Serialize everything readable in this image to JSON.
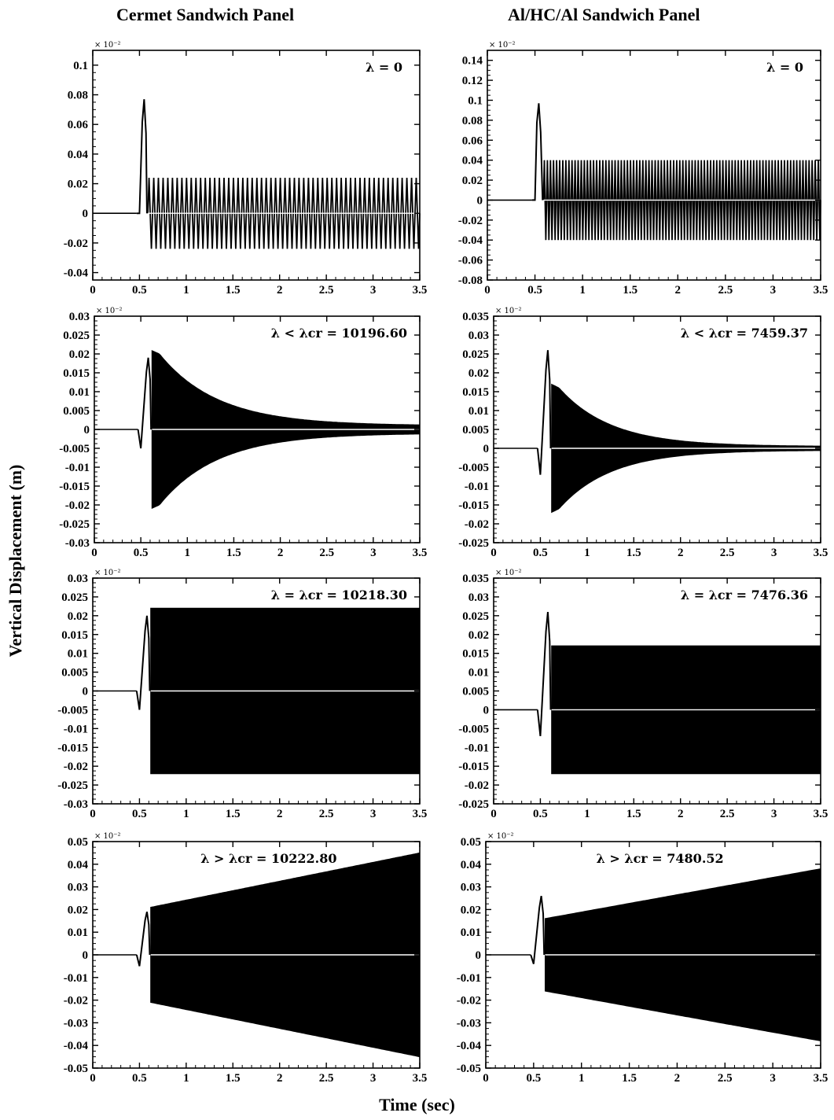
{
  "columns": [
    "Cermet Sandwich Panel",
    "Al/HC/Al Sandwich Panel"
  ],
  "y_axis_label": "Vertical Displacement (m)",
  "x_axis_label": "Time (sec)",
  "chart_data": [
    {
      "type": "line",
      "column": 0,
      "row": 0,
      "annotation": "λ = 0",
      "scale_label": "× 10⁻²",
      "xlim": [
        0,
        3.5
      ],
      "ylim": [
        -0.045,
        0.11
      ],
      "xticks": [
        "0",
        "0.5",
        "1",
        "1.5",
        "2",
        "2.5",
        "3",
        "3.5"
      ],
      "yticks": [
        -0.04,
        -0.02,
        0,
        0.02,
        0.04,
        0.06,
        0.08,
        0.1
      ],
      "yticklabels": [
        "-0.04",
        "-0.02",
        "0",
        "0.02",
        "0.04",
        "0.06",
        "0.08",
        "0.1"
      ],
      "envelope": {
        "t_start": 0.47,
        "pulse_peak": 0.077,
        "pulse_min": 0.0,
        "pulse_t": 0.55,
        "t_osc": 0.59,
        "amp_start_pos": 0.024,
        "amp_end_pos": 0.024,
        "amp_start_neg": -0.024,
        "amp_end_neg": -0.024,
        "band": false,
        "cycles": 58
      }
    },
    {
      "type": "line",
      "column": 1,
      "row": 0,
      "annotation": "λ = 0",
      "scale_label": "× 10⁻²",
      "xlim": [
        0,
        3.5
      ],
      "ylim": [
        -0.08,
        0.15
      ],
      "xticks": [
        "0",
        "0.5",
        "1",
        "1.5",
        "2",
        "2.5",
        "3",
        "3.5"
      ],
      "yticks": [
        -0.08,
        -0.06,
        -0.04,
        -0.02,
        0,
        0.02,
        0.04,
        0.06,
        0.08,
        0.1,
        0.12,
        0.14
      ],
      "yticklabels": [
        "-0.08",
        "-0.06",
        "-0.04",
        "-0.02",
        "0",
        "0.02",
        "0.04",
        "0.06",
        "0.08",
        "0.1",
        "0.12",
        "0.14"
      ],
      "envelope": {
        "t_start": 0.47,
        "pulse_peak": 0.097,
        "pulse_min": 0.0,
        "pulse_t": 0.54,
        "t_osc": 0.59,
        "amp_start_pos": 0.04,
        "amp_end_pos": 0.04,
        "amp_start_neg": -0.04,
        "amp_end_neg": -0.04,
        "band": false,
        "cycles": 90
      }
    },
    {
      "type": "line",
      "column": 0,
      "row": 1,
      "annotation": "λ < λcr = 10196.60",
      "scale_label": "× 10⁻²",
      "xlim": [
        0,
        3.5
      ],
      "ylim": [
        -0.03,
        0.03
      ],
      "xticks": [
        "0",
        "0.5",
        "1",
        "1.5",
        "2",
        "2.5",
        "3",
        "3.5"
      ],
      "yticks": [
        -0.03,
        -0.025,
        -0.02,
        -0.015,
        -0.01,
        -0.005,
        0,
        0.005,
        0.01,
        0.015,
        0.02,
        0.025,
        0.03
      ],
      "yticklabels": [
        "-0.03",
        "-0.025",
        "-0.02",
        "-0.015",
        "-0.01",
        "-0.005",
        "0",
        "0.005",
        "0.01",
        "0.015",
        "0.02",
        "0.025",
        "0.03"
      ],
      "envelope": {
        "t_start": 0.47,
        "pulse_peak": 0.019,
        "pulse_min": -0.005,
        "pulse_t": 0.58,
        "t_osc": 0.62,
        "amp_start_pos": 0.02,
        "amp_end_pos": 0.001,
        "amp_start_neg": -0.02,
        "amp_end_neg": -0.001,
        "band": true,
        "decay": 1.6
      }
    },
    {
      "type": "line",
      "column": 1,
      "row": 1,
      "annotation": "λ < λcr = 7459.37",
      "scale_label": "× 10⁻²",
      "xlim": [
        0,
        3.5
      ],
      "ylim": [
        -0.025,
        0.035
      ],
      "xticks": [
        "0",
        "0.5",
        "1",
        "1.5",
        "2",
        "2.5",
        "3",
        "3.5"
      ],
      "yticks": [
        -0.025,
        -0.02,
        -0.015,
        -0.01,
        -0.005,
        0,
        0.005,
        0.01,
        0.015,
        0.02,
        0.025,
        0.03,
        0.035
      ],
      "yticklabels": [
        "-0.025",
        "-0.02",
        "-0.015",
        "-0.01",
        "-0.005",
        "0",
        "0.005",
        "0.01",
        "0.015",
        "0.02",
        "0.025",
        "0.03",
        "0.035"
      ],
      "envelope": {
        "t_start": 0.47,
        "pulse_peak": 0.026,
        "pulse_min": -0.007,
        "pulse_t": 0.58,
        "t_osc": 0.62,
        "amp_start_pos": 0.016,
        "amp_end_pos": 0.0005,
        "amp_start_neg": -0.016,
        "amp_end_neg": -0.0005,
        "band": true,
        "decay": 1.8
      }
    },
    {
      "type": "line",
      "column": 0,
      "row": 2,
      "annotation": "λ = λcr = 10218.30",
      "scale_label": "× 10⁻²",
      "xlim": [
        0,
        3.5
      ],
      "ylim": [
        -0.03,
        0.03
      ],
      "xticks": [
        "0",
        "0.5",
        "1",
        "1.5",
        "2",
        "2.5",
        "3",
        "3.5"
      ],
      "yticks": [
        -0.03,
        -0.025,
        -0.02,
        -0.015,
        -0.01,
        -0.005,
        0,
        0.005,
        0.01,
        0.015,
        0.02,
        0.025,
        0.03
      ],
      "yticklabels": [
        "-0.03",
        "-0.025",
        "-0.02",
        "-0.015",
        "-0.01",
        "-0.005",
        "0",
        "0.005",
        "0.01",
        "0.015",
        "0.02",
        "0.025",
        "0.03"
      ],
      "envelope": {
        "t_start": 0.47,
        "pulse_peak": 0.02,
        "pulse_min": -0.005,
        "pulse_t": 0.58,
        "t_osc": 0.62,
        "amp_start_pos": 0.022,
        "amp_end_pos": 0.022,
        "amp_start_neg": -0.022,
        "amp_end_neg": -0.022,
        "band": true
      }
    },
    {
      "type": "line",
      "column": 1,
      "row": 2,
      "annotation": "λ = λcr = 7476.36",
      "scale_label": "× 10⁻²",
      "xlim": [
        0,
        3.5
      ],
      "ylim": [
        -0.025,
        0.035
      ],
      "xticks": [
        "0",
        "0.5",
        "1",
        "1.5",
        "2",
        "2.5",
        "3",
        "3.5"
      ],
      "yticks": [
        -0.025,
        -0.02,
        -0.015,
        -0.01,
        -0.005,
        0,
        0.005,
        0.01,
        0.015,
        0.02,
        0.025,
        0.03,
        0.035
      ],
      "yticklabels": [
        "-0.025",
        "-0.02",
        "-0.015",
        "-0.01",
        "-0.005",
        "0",
        "0.005",
        "0.01",
        "0.015",
        "0.02",
        "0.025",
        "0.03",
        "0.035"
      ],
      "envelope": {
        "t_start": 0.47,
        "pulse_peak": 0.026,
        "pulse_min": -0.007,
        "pulse_t": 0.58,
        "t_osc": 0.62,
        "amp_start_pos": 0.017,
        "amp_end_pos": 0.017,
        "amp_start_neg": -0.017,
        "amp_end_neg": -0.017,
        "band": true
      }
    },
    {
      "type": "line",
      "column": 0,
      "row": 3,
      "annotation": "λ > λcr = 10222.80",
      "scale_label": "× 10⁻²",
      "xlim": [
        0,
        3.5
      ],
      "ylim": [
        -0.05,
        0.05
      ],
      "xticks": [
        "0",
        "0.5",
        "1",
        "1.5",
        "2",
        "2.5",
        "3",
        "3.5"
      ],
      "yticks": [
        -0.05,
        -0.04,
        -0.03,
        -0.02,
        -0.01,
        0,
        0.01,
        0.02,
        0.03,
        0.04,
        0.05
      ],
      "yticklabels": [
        "-0.05",
        "-0.04",
        "-0.03",
        "-0.02",
        "-0.01",
        "0",
        "0.01",
        "0.02",
        "0.03",
        "0.04",
        "0.05"
      ],
      "envelope": {
        "t_start": 0.47,
        "pulse_peak": 0.019,
        "pulse_min": -0.005,
        "pulse_t": 0.58,
        "t_osc": 0.62,
        "amp_start_pos": 0.021,
        "amp_end_pos": 0.045,
        "amp_start_neg": -0.021,
        "amp_end_neg": -0.045,
        "band": true
      }
    },
    {
      "type": "line",
      "column": 1,
      "row": 3,
      "annotation": "λ > λcr = 7480.52",
      "scale_label": "× 10⁻²",
      "xlim": [
        0,
        3.5
      ],
      "ylim": [
        -0.05,
        0.05
      ],
      "xticks": [
        "0",
        "0.5",
        "1",
        "1.5",
        "2",
        "2.5",
        "3",
        "3.5"
      ],
      "yticks": [
        -0.05,
        -0.04,
        -0.03,
        -0.02,
        -0.01,
        0,
        0.01,
        0.02,
        0.03,
        0.04,
        0.05
      ],
      "yticklabels": [
        "-0.05",
        "-0.04",
        "-0.03",
        "-0.02",
        "-0.01",
        "0",
        "0.01",
        "0.02",
        "0.03",
        "0.04",
        "0.05"
      ],
      "envelope": {
        "t_start": 0.47,
        "pulse_peak": 0.026,
        "pulse_min": -0.004,
        "pulse_t": 0.58,
        "t_osc": 0.62,
        "amp_start_pos": 0.016,
        "amp_end_pos": 0.038,
        "amp_start_neg": -0.016,
        "amp_end_neg": -0.038,
        "band": true
      }
    }
  ]
}
